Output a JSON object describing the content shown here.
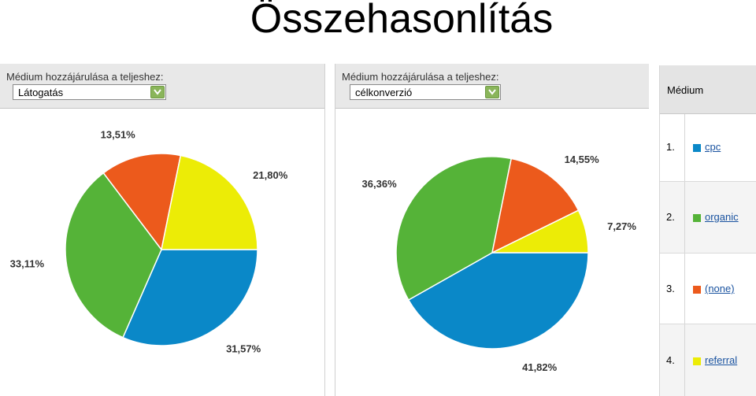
{
  "page_title": "Összehasonlítás",
  "left_panel": {
    "label": "Médium hozzájárulása a teljeshez:",
    "select_value": "Látogatás"
  },
  "right_panel": {
    "label": "Médium hozzájárulása a teljeshez:",
    "select_value": "célkonverzió"
  },
  "colors": {
    "cpc": "#0a88c8",
    "organic": "#55b338",
    "none": "#ec5a1c",
    "referral": "#ecec06"
  },
  "chart_data": [
    {
      "type": "pie",
      "metric": "Látogatás",
      "categories": [
        "cpc",
        "organic",
        "(none)",
        "referral"
      ],
      "values": [
        31.57,
        33.11,
        13.51,
        21.8
      ],
      "labels": [
        "31,57%",
        "33,11%",
        "13,51%",
        "21,80%"
      ]
    },
    {
      "type": "pie",
      "metric": "célkonverzió",
      "categories": [
        "cpc",
        "organic",
        "(none)",
        "referral"
      ],
      "values": [
        41.82,
        36.36,
        14.55,
        7.27
      ],
      "labels": [
        "41,82%",
        "36,36%",
        "14,55%",
        "7,27%"
      ]
    }
  ],
  "table": {
    "header": "Médium",
    "rows": [
      {
        "num": "1.",
        "label": "cpc",
        "color": "#0a88c8"
      },
      {
        "num": "2.",
        "label": "organic",
        "color": "#55b338"
      },
      {
        "num": "3.",
        "label": "(none)",
        "color": "#ec5a1c"
      },
      {
        "num": "4.",
        "label": "referral",
        "color": "#ecec06"
      }
    ]
  }
}
